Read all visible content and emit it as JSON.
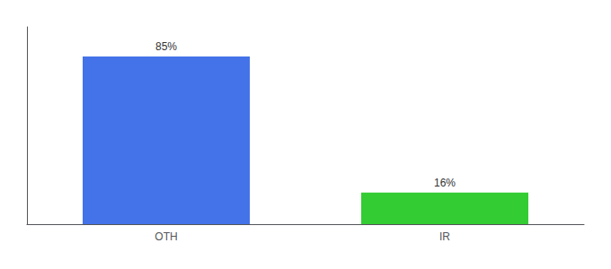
{
  "chart_data": {
    "type": "bar",
    "categories": [
      "OTH",
      "IR"
    ],
    "values": [
      85,
      16
    ],
    "colors": [
      "#4472e8",
      "#33cc33"
    ],
    "value_labels": [
      "85%",
      "16%"
    ],
    "data_labels": true,
    "ylim": [
      0,
      100
    ],
    "tick_labels": "x",
    "grid": false
  }
}
